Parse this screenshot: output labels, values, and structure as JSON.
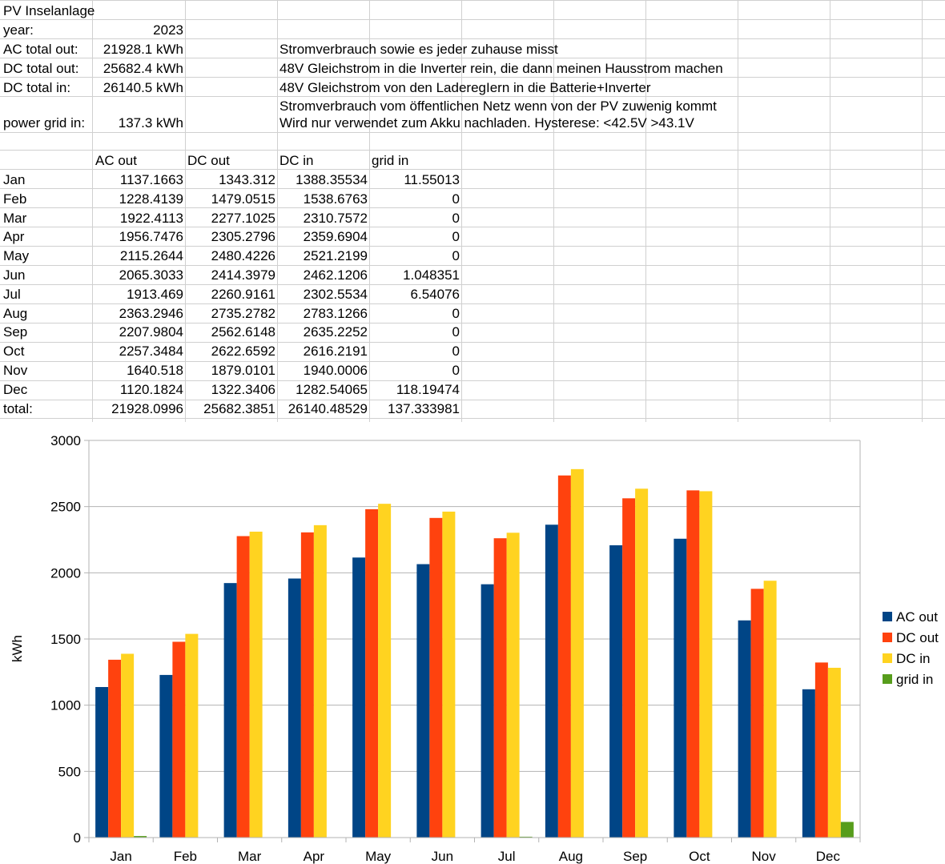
{
  "sheet": {
    "title": "PV Inselanlage",
    "year_label": "year:",
    "year_value": "2023",
    "ac_total_label": "AC total out:",
    "ac_total_value": "21928.1 kWh",
    "ac_total_note": "Stromverbrauch sowie es jeder zuhause misst",
    "dc_out_label": "DC total out:",
    "dc_out_value": "25682.4 kWh",
    "dc_out_note": "48V Gleichstrom in die Inverter rein, die dann meinen Hausstrom machen",
    "dc_in_label": "DC total in:",
    "dc_in_value": "26140.5 kWh",
    "dc_in_note": "48V Gleichstrom von den LaderegIern in die Batterie+Inverter",
    "grid_label": "power grid in:",
    "grid_value": "137.3 kWh",
    "grid_note_1": "Stromverbrauch vom öffentlichen Netz wenn von der PV zuwenig kommt",
    "grid_note_2": "Wird nur verwendet zum Akku nachladen. Hysterese: <42.5V >43.1V",
    "headers": [
      "AC out",
      "DC out",
      "DC in",
      "grid in"
    ],
    "rows": [
      [
        "Jan",
        "1137.1663",
        "1343.312",
        "1388.35534",
        "11.55013"
      ],
      [
        "Feb",
        "1228.4139",
        "1479.0515",
        "1538.6763",
        "0"
      ],
      [
        "Mar",
        "1922.4113",
        "2277.1025",
        "2310.7572",
        "0"
      ],
      [
        "Apr",
        "1956.7476",
        "2305.2796",
        "2359.6904",
        "0"
      ],
      [
        "May",
        "2115.2644",
        "2480.4226",
        "2521.2199",
        "0"
      ],
      [
        "Jun",
        "2065.3033",
        "2414.3979",
        "2462.1206",
        "1.048351"
      ],
      [
        "Jul",
        "1913.469",
        "2260.9161",
        "2302.5534",
        "6.54076"
      ],
      [
        "Aug",
        "2363.2946",
        "2735.2782",
        "2783.1266",
        "0"
      ],
      [
        "Sep",
        "2207.9804",
        "2562.6148",
        "2635.2252",
        "0"
      ],
      [
        "Oct",
        "2257.3484",
        "2622.6592",
        "2616.2191",
        "0"
      ],
      [
        "Nov",
        "1640.518",
        "1879.0101",
        "1940.0006",
        "0"
      ],
      [
        "Dec",
        "1120.1824",
        "1322.3406",
        "1282.54065",
        "118.19474"
      ]
    ],
    "total_row": [
      "total:",
      "21928.0996",
      "25682.3851",
      "26140.48529",
      "137.333981"
    ]
  },
  "chart_data": {
    "type": "bar",
    "categories": [
      "Jan",
      "Feb",
      "Mar",
      "Apr",
      "May",
      "Jun",
      "Jul",
      "Aug",
      "Sep",
      "Oct",
      "Nov",
      "Dec"
    ],
    "series": [
      {
        "name": "AC out",
        "color": "#004586",
        "values": [
          1137.1663,
          1228.4139,
          1922.4113,
          1956.7476,
          2115.2644,
          2065.3033,
          1913.469,
          2363.2946,
          2207.9804,
          2257.3484,
          1640.518,
          1120.1824
        ]
      },
      {
        "name": "DC out",
        "color": "#ff420e",
        "values": [
          1343.312,
          1479.0515,
          2277.1025,
          2305.2796,
          2480.4226,
          2414.3979,
          2260.9161,
          2735.2782,
          2562.6148,
          2622.6592,
          1879.0101,
          1322.3406
        ]
      },
      {
        "name": "DC in",
        "color": "#ffd320",
        "values": [
          1388.35534,
          1538.6763,
          2310.7572,
          2359.6904,
          2521.2199,
          2462.1206,
          2302.5534,
          2783.1266,
          2635.2252,
          2616.2191,
          1940.0006,
          1282.54065
        ]
      },
      {
        "name": "grid in",
        "color": "#579d1c",
        "values": [
          11.55013,
          0,
          0,
          0,
          0,
          1.048351,
          6.54076,
          0,
          0,
          0,
          0,
          118.19474
        ]
      }
    ],
    "ylabel": "kWh",
    "xlabel": "",
    "ylim": [
      0,
      3000
    ],
    "yticks": [
      "0",
      "500",
      "1000",
      "1500",
      "2000",
      "2500",
      "3000"
    ],
    "grid": true,
    "legend": "right"
  }
}
